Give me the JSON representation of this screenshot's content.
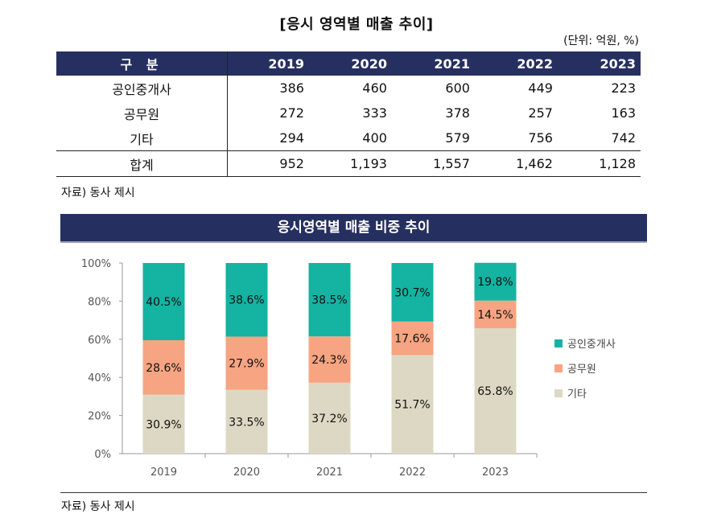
{
  "table_title": "[응시 영역별 매출 추이]",
  "unit_note": "(단위: 억원, %)",
  "table": {
    "header_label": "구 분",
    "years": [
      "2019",
      "2020",
      "2021",
      "2022",
      "2023"
    ],
    "rows": [
      {
        "label": "공인중개사",
        "values": [
          "386",
          "460",
          "600",
          "449",
          "223"
        ]
      },
      {
        "label": "공무원",
        "values": [
          "272",
          "333",
          "378",
          "257",
          "163"
        ]
      },
      {
        "label": "기타",
        "values": [
          "294",
          "400",
          "579",
          "756",
          "742"
        ]
      }
    ],
    "total": {
      "label": "합계",
      "values": [
        "952",
        "1,193",
        "1,557",
        "1,462",
        "1,128"
      ]
    }
  },
  "source_note_1": "자료) 동사 제시",
  "chart_title": "응시영역별 매출 비중 추이",
  "source_note_2": "자료) 동사 제시",
  "chart_data": {
    "type": "bar",
    "stacked": true,
    "categories": [
      "2019",
      "2020",
      "2021",
      "2022",
      "2023"
    ],
    "series": [
      {
        "name": "기타",
        "values": [
          30.9,
          33.5,
          37.2,
          51.7,
          65.8
        ],
        "labels": [
          "30.9%",
          "33.5%",
          "37.2%",
          "51.7%",
          "65.8%"
        ],
        "color": "#ddd8c3"
      },
      {
        "name": "공무원",
        "values": [
          28.6,
          27.9,
          24.3,
          17.6,
          14.5
        ],
        "labels": [
          "28.6%",
          "27.9%",
          "24.3%",
          "17.6%",
          "14.5%"
        ],
        "color": "#f7a482"
      },
      {
        "name": "공인중개사",
        "values": [
          40.5,
          38.6,
          38.5,
          30.7,
          19.8
        ],
        "labels": [
          "40.5%",
          "38.6%",
          "38.5%",
          "30.7%",
          "19.8%"
        ],
        "color": "#14b3a2"
      }
    ],
    "legend_order": [
      "공인중개사",
      "공무원",
      "기타"
    ],
    "legend_position": "right",
    "y_ticks": [
      "0%",
      "20%",
      "40%",
      "60%",
      "80%",
      "100%"
    ],
    "ylim": [
      0,
      100
    ],
    "grid": false
  }
}
